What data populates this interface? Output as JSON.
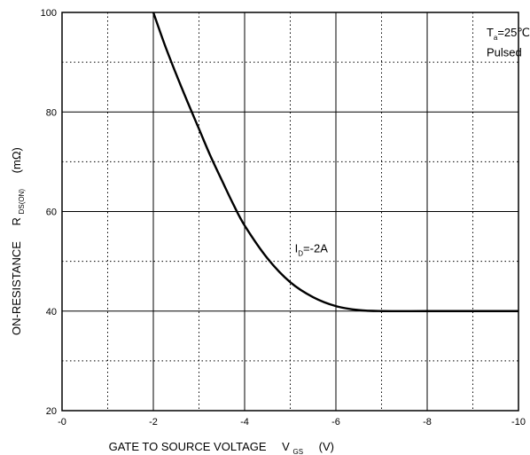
{
  "chart_data": {
    "type": "line",
    "xlabel": {
      "main": "GATE TO SOURCE VOLTAGE",
      "symbol": "V",
      "sub": "GS",
      "unit": "(V)"
    },
    "ylabel": {
      "main": "ON-RESISTANCE",
      "symbol": "R",
      "sub": "DS(ON)",
      "unit": "(mΩ)"
    },
    "xlim": [
      0,
      -10
    ],
    "ylim": [
      20,
      100
    ],
    "x_ticks": [
      0,
      -2,
      -4,
      -6,
      -8,
      -10
    ],
    "x_tick_labels": [
      "-0",
      "-2",
      "-4",
      "-6",
      "-8",
      "-10"
    ],
    "y_ticks": [
      20,
      40,
      60,
      80,
      100
    ],
    "y_tick_labels": [
      "20",
      "40",
      "60",
      "80",
      "100"
    ],
    "grid": {
      "major": "solid",
      "minor": "dotted"
    },
    "annotations": [
      {
        "prefix": "T",
        "sub": "a",
        "suffix": "=25℃",
        "x": -9.3,
        "y": 95.2
      },
      {
        "prefix": "Pulsed",
        "sub": "",
        "suffix": "",
        "x": -9.3,
        "y": 91.2
      },
      {
        "prefix": "I",
        "sub": "D",
        "suffix": "=-2A",
        "x": -5.1,
        "y": 51.8
      }
    ],
    "series": [
      {
        "name": "I_D=-2A",
        "color": "#000000",
        "x": [
          -2.0,
          -2.25,
          -2.5,
          -2.75,
          -3.0,
          -3.25,
          -3.5,
          -3.75,
          -4.0,
          -4.5,
          -5.0,
          -5.5,
          -6.0,
          -6.5,
          -7.0,
          -8.0,
          -9.0,
          -10.0
        ],
        "y": [
          100,
          93.5,
          87.6,
          82.0,
          76.6,
          71.2,
          66.3,
          61.5,
          57.2,
          50.6,
          45.8,
          42.8,
          41.0,
          40.2,
          40.0,
          40.0,
          40.0,
          40.0
        ]
      }
    ]
  }
}
